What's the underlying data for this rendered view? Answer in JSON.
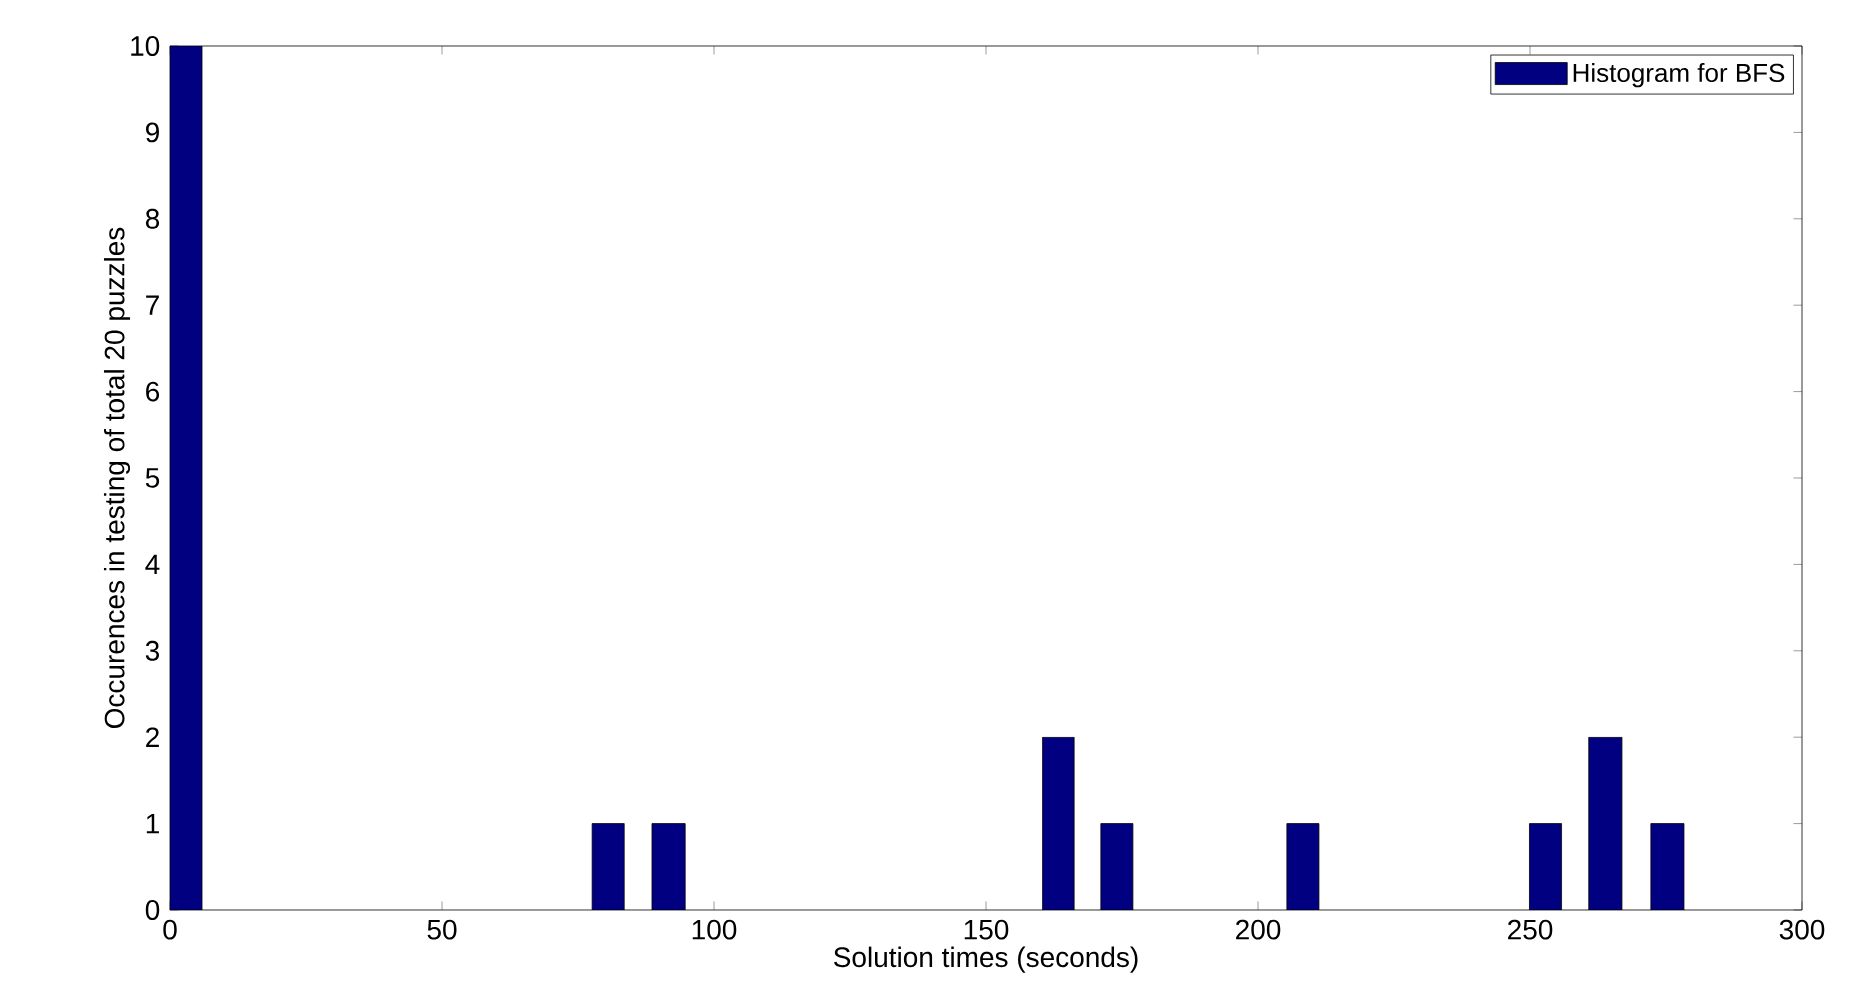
{
  "chart_data": {
    "type": "histogram",
    "xlabel": "Solution times (seconds)",
    "ylabel": "Occurences in testing of total 20 puzzles",
    "bins": [
      0,
      5.9,
      77.6,
      83.5,
      88.6,
      94.7,
      160.4,
      166.2,
      171.1,
      177.0,
      205.3,
      211.2,
      249.9,
      255.8,
      260.8,
      266.9,
      272.2,
      278.3
    ],
    "series": [
      {
        "name": "Histogram for BFS",
        "color": "#000080",
        "values": [
          10,
          0,
          1,
          0,
          1,
          0,
          2,
          0,
          1,
          0,
          1,
          0,
          1,
          0,
          2,
          0,
          1
        ]
      }
    ],
    "xlim": [
      0,
      300
    ],
    "ylim": [
      0,
      10
    ],
    "xticks": [
      0,
      50,
      100,
      150,
      200,
      250,
      300
    ],
    "yticks": [
      0,
      1,
      2,
      3,
      4,
      5,
      6,
      7,
      8,
      9,
      10
    ],
    "legend": "top right",
    "grid": false
  }
}
